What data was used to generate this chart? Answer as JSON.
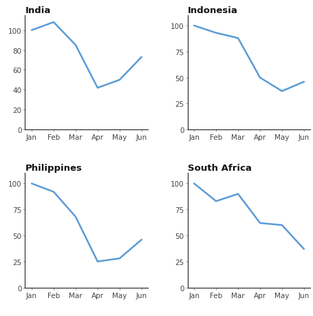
{
  "months": [
    "Jan",
    "Feb",
    "Mar",
    "Apr",
    "May",
    "Jun"
  ],
  "india": [
    100,
    108,
    85,
    42,
    50,
    73
  ],
  "indonesia": [
    100,
    93,
    88,
    50,
    37,
    46
  ],
  "philippines": [
    100,
    92,
    68,
    25,
    28,
    46
  ],
  "south_africa": [
    100,
    83,
    90,
    62,
    60,
    37
  ],
  "line_color": "#5b9bd5",
  "line_width": 1.8,
  "titles": [
    "India",
    "Indonesia",
    "Philippines",
    "South Africa"
  ],
  "yticks_india": [
    0,
    20,
    40,
    60,
    80,
    100
  ],
  "yticks_indonesia": [
    0,
    25,
    50,
    75,
    100
  ],
  "yticks_philippines": [
    0,
    25,
    50,
    75,
    100
  ],
  "yticks_south_africa": [
    0,
    25,
    50,
    75,
    100
  ],
  "ylim_india": [
    0,
    115
  ],
  "ylim_rest": [
    0,
    110
  ],
  "bg_color": "#ffffff",
  "spine_color": "#222222",
  "tick_color": "#444444",
  "title_fontsize": 9.5,
  "tick_fontsize": 7.5
}
